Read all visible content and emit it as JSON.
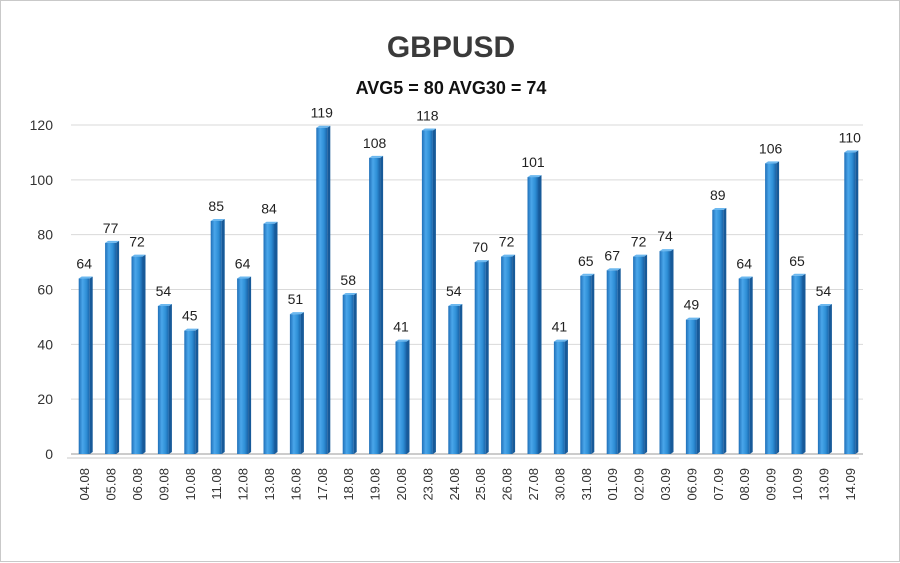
{
  "chart_data": {
    "type": "bar",
    "title": "GBPUSD",
    "subtitle": "AVG5 = 80 AVG30 = 74",
    "xlabel": "",
    "ylabel": "",
    "ylim": [
      0,
      120
    ],
    "yticks": [
      0,
      20,
      40,
      60,
      80,
      100,
      120
    ],
    "grid": true,
    "legend": "none",
    "bar_color": "#2e8fd6",
    "categories": [
      "04.08",
      "05.08",
      "06.08",
      "09.08",
      "10.08",
      "11.08",
      "12.08",
      "13.08",
      "16.08",
      "17.08",
      "18.08",
      "19.08",
      "20.08",
      "23.08",
      "24.08",
      "25.08",
      "26.08",
      "27.08",
      "30.08",
      "31.08",
      "01.09",
      "02.09",
      "03.09",
      "06.09",
      "07.09",
      "08.09",
      "09.09",
      "10.09",
      "13.09",
      "14.09"
    ],
    "values": [
      64,
      77,
      72,
      54,
      45,
      85,
      64,
      84,
      51,
      119,
      58,
      108,
      41,
      118,
      54,
      70,
      72,
      101,
      41,
      65,
      67,
      72,
      74,
      49,
      89,
      64,
      106,
      65,
      54,
      110
    ]
  }
}
